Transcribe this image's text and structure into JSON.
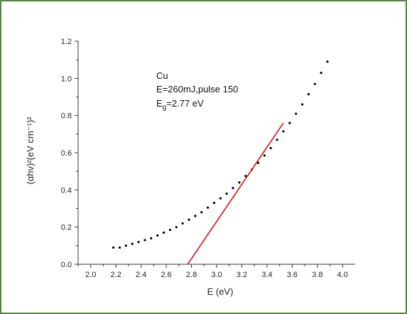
{
  "colors": {
    "frame_border": "#4f8a3a",
    "data_points": "#000000",
    "fit_line": "#d62728",
    "axis": "#333333"
  },
  "chart_data": {
    "type": "scatter",
    "title": "",
    "xlabel": "E (eV)",
    "ylabel": "(αhν)²(eV cm⁻¹)²",
    "xlim": [
      1.9,
      4.1
    ],
    "ylim": [
      0.0,
      1.2
    ],
    "x_ticks": [
      2.0,
      2.2,
      2.4,
      2.6,
      2.8,
      3.0,
      3.2,
      3.4,
      3.6,
      3.8,
      4.0
    ],
    "y_ticks": [
      0.0,
      0.2,
      0.4,
      0.6,
      0.8,
      1.0,
      1.2
    ],
    "x_tick_labels": [
      "2.0",
      "2.2",
      "2.4",
      "2.6",
      "2.8",
      "3.0",
      "3.2",
      "3.4",
      "3.6",
      "3.8",
      "4.0"
    ],
    "y_tick_labels": [
      "0.0",
      "0.2",
      "0.4",
      "0.6",
      "0.8",
      "1.0",
      "1.2"
    ],
    "grid": false,
    "annotation": {
      "line1": "Cu",
      "line2": "E=260mJ,pulse 150",
      "line3_prefix": "E",
      "line3_sub": "g",
      "line3_suffix": "=2.77 eV"
    },
    "series": [
      {
        "type": "scatter",
        "x": [
          2.18,
          2.23,
          2.28,
          2.33,
          2.38,
          2.43,
          2.48,
          2.53,
          2.58,
          2.63,
          2.68,
          2.73,
          2.78,
          2.83,
          2.88,
          2.93,
          2.98,
          3.03,
          3.08,
          3.13,
          3.18,
          3.23,
          3.28,
          3.33,
          3.38,
          3.43,
          3.48,
          3.53,
          3.58,
          3.63,
          3.68,
          3.73,
          3.78,
          3.83,
          3.88
        ],
        "y": [
          0.09,
          0.09,
          0.1,
          0.11,
          0.12,
          0.13,
          0.14,
          0.155,
          0.17,
          0.185,
          0.2,
          0.22,
          0.24,
          0.26,
          0.28,
          0.305,
          0.33,
          0.355,
          0.38,
          0.41,
          0.44,
          0.475,
          0.51,
          0.545,
          0.585,
          0.625,
          0.67,
          0.715,
          0.76,
          0.81,
          0.86,
          0.915,
          0.97,
          1.03,
          1.09
        ]
      },
      {
        "type": "line",
        "x": [
          2.77,
          3.53
        ],
        "y": [
          0.0,
          0.76
        ]
      }
    ]
  }
}
